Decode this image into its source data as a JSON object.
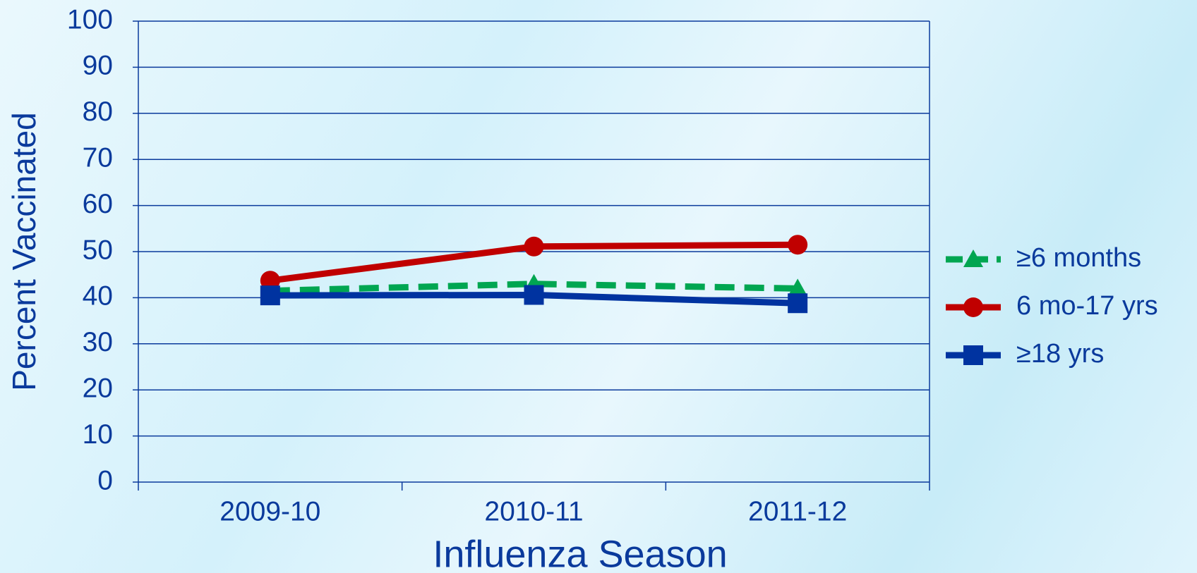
{
  "chart_data": {
    "type": "line",
    "categories": [
      "2009-10",
      "2010-11",
      "2011-12"
    ],
    "series": [
      {
        "name": "≥6 months",
        "color": "#00a651",
        "dash": true,
        "marker": "triangle",
        "values": [
          41.5,
          43,
          42
        ]
      },
      {
        "name": "6 mo-17 yrs",
        "color": "#c00000",
        "dash": false,
        "marker": "circle",
        "values": [
          43.7,
          51.1,
          51.5
        ]
      },
      {
        "name": "≥18 yrs",
        "color": "#0033a0",
        "dash": false,
        "marker": "square",
        "values": [
          40.5,
          40.6,
          38.8
        ]
      }
    ],
    "ylim": [
      0,
      100
    ],
    "yticks": [
      0,
      10,
      20,
      30,
      40,
      50,
      60,
      70,
      80,
      90,
      100
    ],
    "xlabel": "Influenza Season",
    "ylabel": "Percent Vaccinated",
    "grid": true,
    "legend": "right"
  }
}
